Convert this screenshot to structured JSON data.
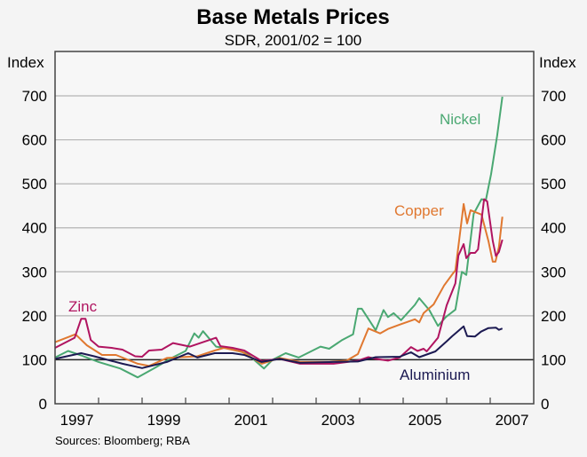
{
  "chart_data": {
    "type": "line",
    "title": "Base Metals Prices",
    "subtitle": "SDR, 2001/02 = 100",
    "ylabel_left": "Index",
    "ylabel_right": "Index",
    "ylim": [
      0,
      700
    ],
    "xlim": [
      1997,
      2008
    ],
    "yticks": [
      0,
      100,
      200,
      300,
      400,
      500,
      600,
      700
    ],
    "xtick_labels": [
      "1997",
      "1999",
      "2001",
      "2003",
      "2005",
      "2007"
    ],
    "xtick_label_years": [
      1997,
      1999,
      2001,
      2003,
      2005,
      2007
    ],
    "reference_line": 100,
    "grid": true,
    "source": "Sources: Bloomberg; RBA",
    "series": [
      {
        "name": "Nickel",
        "color": "#4aa872",
        "x": [
          1997.0,
          1997.3,
          1997.6,
          1998.0,
          1998.5,
          1998.9,
          1999.3,
          1999.7,
          2000.0,
          2000.2,
          2000.3,
          2000.4,
          2000.7,
          2001.0,
          2001.4,
          2001.8,
          2002.0,
          2002.3,
          2002.6,
          2003.1,
          2003.3,
          2003.6,
          2003.85,
          2003.96,
          2004.05,
          2004.37,
          2004.55,
          2004.65,
          2004.78,
          2004.95,
          2005.27,
          2005.37,
          2005.6,
          2005.8,
          2005.98,
          2006.2,
          2006.35,
          2006.45,
          2006.62,
          2006.8,
          2006.9,
          2007.02,
          2007.16,
          2007.28
        ],
        "y": [
          105,
          120,
          110,
          95,
          80,
          60,
          82,
          105,
          120,
          160,
          150,
          165,
          130,
          125,
          115,
          80,
          100,
          115,
          105,
          130,
          125,
          145,
          158,
          216,
          216,
          167,
          213,
          197,
          206,
          190,
          225,
          240,
          213,
          177,
          197,
          214,
          300,
          293,
          432,
          465,
          463,
          522,
          609,
          698
        ]
      },
      {
        "name": "Copper",
        "color": "#e07830",
        "x": [
          1997.0,
          1997.47,
          1997.73,
          1998.08,
          1998.4,
          1998.9,
          1999.16,
          1999.57,
          2000.27,
          2000.67,
          2000.88,
          2001.3,
          2001.75,
          2002.16,
          2002.63,
          2003.3,
          2003.7,
          2003.96,
          2004.2,
          2004.47,
          2004.65,
          2004.92,
          2005.27,
          2005.37,
          2005.47,
          2005.7,
          2005.94,
          2006.14,
          2006.2,
          2006.39,
          2006.47,
          2006.55,
          2006.8,
          2006.96,
          2007.06,
          2007.12,
          2007.2,
          2007.28
        ],
        "y": [
          140,
          158,
          133,
          111,
          111,
          91,
          86,
          104,
          108,
          121,
          127,
          118,
          91,
          104,
          95,
          95,
          98,
          113,
          171,
          160,
          170,
          180,
          192,
          185,
          206,
          226,
          269,
          296,
          303,
          454,
          410,
          440,
          430,
          370,
          323,
          323,
          356,
          425
        ]
      },
      {
        "name": "Zinc",
        "color": "#b01460",
        "x": [
          1997.0,
          1997.45,
          1997.6,
          1997.7,
          1997.82,
          1998.0,
          1998.3,
          1998.55,
          1998.84,
          1999.0,
          1999.16,
          1999.45,
          1999.71,
          2000.1,
          2000.4,
          2000.7,
          2000.8,
          2001.08,
          2001.35,
          2001.75,
          2002.16,
          2002.63,
          2003.4,
          2003.96,
          2004.2,
          2004.37,
          2004.65,
          2004.92,
          2005.18,
          2005.33,
          2005.47,
          2005.54,
          2005.8,
          2006.0,
          2006.2,
          2006.27,
          2006.39,
          2006.45,
          2006.55,
          2006.65,
          2006.72,
          2006.86,
          2006.93,
          2007.06,
          2007.13,
          2007.2,
          2007.28
        ],
        "y": [
          127,
          150,
          193,
          193,
          145,
          130,
          127,
          123,
          108,
          107,
          121,
          123,
          138,
          130,
          140,
          150,
          131,
          127,
          121,
          97,
          102,
          91,
          91,
          98,
          106,
          102,
          98,
          105,
          129,
          120,
          125,
          119,
          150,
          224,
          274,
          337,
          363,
          331,
          343,
          343,
          351,
          465,
          460,
          370,
          336,
          345,
          373
        ]
      },
      {
        "name": "Aluminium",
        "color": "#1c1a52",
        "x": [
          1997.0,
          1997.6,
          1997.9,
          1998.55,
          1999.0,
          1999.57,
          2000.06,
          2000.27,
          2000.67,
          2001.08,
          2001.35,
          2001.75,
          2002.16,
          2002.63,
          2003.4,
          2003.96,
          2004.37,
          2004.92,
          2005.18,
          2005.37,
          2005.74,
          2006.0,
          2006.14,
          2006.39,
          2006.47,
          2006.65,
          2006.79,
          2006.96,
          2007.13,
          2007.2,
          2007.28
        ],
        "y": [
          102,
          115,
          108,
          91,
          81,
          95,
          115,
          105,
          115,
          115,
          111,
          95,
          102,
          93,
          95,
          96,
          106,
          107,
          117,
          106,
          119,
          142,
          155,
          176,
          154,
          153,
          164,
          172,
          173,
          168,
          171
        ]
      }
    ]
  }
}
